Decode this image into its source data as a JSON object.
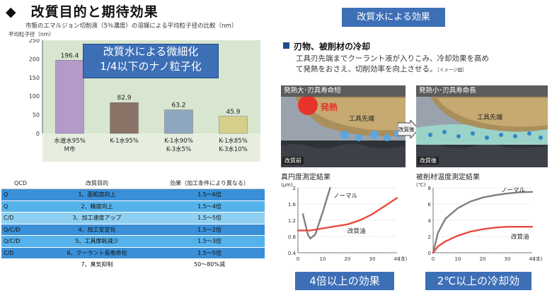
{
  "header": {
    "title": "◆　改質目的と期待効果"
  },
  "left_chart": {
    "subtitle": "市販のエマルジョン切削液（5％濃度）の溶媒による平均粒子径の比較（nm）",
    "ylabel": "平均粒子径（nm）",
    "callout_line1": "改質水による微細化",
    "callout_line2": "1/4以下のナノ粒子化"
  },
  "table": {
    "headers": [
      "QCD",
      "改質目的",
      "効果（加工条件により異なる）"
    ],
    "rows": [
      {
        "qcd": "Q",
        "purpose": "1、面粗度向上",
        "effect": "1.5～6倍",
        "bg": "#3a8fd6"
      },
      {
        "qcd": "Q",
        "purpose": "2、精度向上",
        "effect": "1.5～4倍",
        "bg": "#55b2ea"
      },
      {
        "qcd": "C/D",
        "purpose": "3、加工速度アップ",
        "effect": "1.5～5倍",
        "bg": "#8fd0f2"
      },
      {
        "qcd": "Q/C/D",
        "purpose": "4、加工安定化",
        "effect": "1.5～2倍",
        "bg": "#3a8fd6"
      },
      {
        "qcd": "Q/C/D",
        "purpose": "5、工具摩耗減少",
        "effect": "1.5～3倍",
        "bg": "#55b2ea"
      },
      {
        "qcd": "C/D",
        "purpose": "6、クーラント長寿命化",
        "effect": "1.5～5倍",
        "bg": "#3a8fd6"
      },
      {
        "qcd": "",
        "purpose": "7、臭気抑制",
        "effect": "50～80%減",
        "bg": "#ffffff"
      }
    ]
  },
  "right": {
    "title": "改質水による効果",
    "section_heading": "刃物、被削材の冷却",
    "section_text_1": "工具刃先端までクーラント液が入りこみ、冷却効果を高め",
    "section_text_2": "て発熱をおさえ、切削効率を向上させる。",
    "image_note": "［イメージ図］",
    "photo_left": {
      "bar": "発熱大･刃具寿命短",
      "heat": "発熱",
      "tool": "工具先端",
      "tag": "改質前"
    },
    "photo_right": {
      "bar": "発熱小･刃具寿命長",
      "tool": "工具先端",
      "tag": "改質後"
    },
    "arrow_label": "改質後",
    "btn_left": "4倍以上の効果",
    "btn_right": "2℃以上の冷却効"
  },
  "chart_data": [
    {
      "type": "bar",
      "categories": [
        "水道水95%\nM市",
        "K-1水95%",
        "K-1水90%\nK-3水5%",
        "K-1水85%\nK-3水10%"
      ],
      "values": [
        196.4,
        82.9,
        63.2,
        45.9
      ],
      "value_labels": [
        "196.4",
        "82.9",
        "63.2",
        "45.9"
      ],
      "colors": [
        "#b49ac9",
        "#8a7468",
        "#8ea6bf",
        "#d6cf8a"
      ],
      "title": "",
      "xlabel": "",
      "ylabel": "平均粒子径（nm）",
      "ylim": [
        0,
        250
      ],
      "yticks": [
        0,
        50,
        100,
        150,
        200,
        250
      ],
      "grid": false
    },
    {
      "type": "line",
      "title": "真円度測定結果",
      "y_unit": "(μm)",
      "x_unit": "(本)",
      "xlim": [
        0,
        40
      ],
      "ylim": [
        0.4,
        2.0
      ],
      "xticks": [
        0,
        10,
        20,
        30,
        40
      ],
      "yticks": [
        0.4,
        0.8,
        1.2,
        1.6,
        2.0
      ],
      "ytick_labels": [
        "0.4",
        "0.8",
        "1.2",
        "1.6",
        "2"
      ],
      "grid": true,
      "series": [
        {
          "name": "ノーマル",
          "color": "#7f7f7f",
          "x": [
            2,
            4,
            5,
            7,
            10,
            13
          ],
          "y": [
            1.35,
            0.85,
            0.75,
            0.85,
            1.4,
            2.0
          ]
        },
        {
          "name": "改質油",
          "color": "#e54b3b",
          "x": [
            0,
            5,
            10,
            15,
            20,
            25,
            30,
            35,
            40
          ],
          "y": [
            0.95,
            0.95,
            1.0,
            1.05,
            1.1,
            1.2,
            1.35,
            1.55,
            1.75
          ]
        }
      ]
    },
    {
      "type": "line",
      "title": "被削材温度測定結果",
      "y_unit": "(℃)",
      "x_unit": "(本)",
      "xlim": [
        0,
        40
      ],
      "ylim": [
        0,
        8
      ],
      "xticks": [
        0,
        10,
        20,
        30,
        40
      ],
      "yticks": [
        0,
        2,
        4,
        6,
        8
      ],
      "grid": true,
      "series": [
        {
          "name": "ノーマル",
          "color": "#7f7f7f",
          "x": [
            0,
            2,
            5,
            10,
            15,
            20,
            25,
            30,
            35,
            40
          ],
          "y": [
            0,
            2.5,
            4.2,
            5.5,
            6.3,
            6.8,
            7.1,
            7.3,
            7.45,
            7.5
          ]
        },
        {
          "name": "改質油",
          "color": "#e54b3b",
          "x": [
            0,
            2,
            5,
            10,
            15,
            20,
            25,
            30,
            35,
            40
          ],
          "y": [
            0,
            0.8,
            1.4,
            2.1,
            2.6,
            2.9,
            3.1,
            3.2,
            3.2,
            3.2
          ]
        }
      ]
    }
  ]
}
